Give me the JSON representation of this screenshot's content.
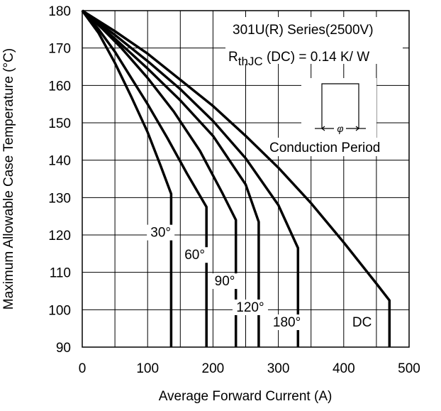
{
  "chart_data": {
    "type": "line",
    "xlabel": "Average Forward Current (A)",
    "ylabel": "Maximum Allowable Case Temperature (°C)",
    "xlim": [
      0,
      500
    ],
    "ylim": [
      90,
      180
    ],
    "x_ticks": [
      "0",
      "100",
      "200",
      "300",
      "400",
      "500"
    ],
    "y_ticks": [
      "90",
      "100",
      "110",
      "120",
      "130",
      "140",
      "150",
      "160",
      "170",
      "180"
    ],
    "grid": true,
    "annotations": {
      "series_title": "301U(R) Series(2500V)",
      "rth_prefix": "R",
      "rth_sub": "thJC",
      "rth_rest": " (DC) = 0.14 K/ W",
      "conduction_label": "Conduction Period",
      "phi": "φ"
    },
    "series": [
      {
        "name": "30°",
        "points": [
          [
            0,
            180
          ],
          [
            25,
            174
          ],
          [
            50,
            166
          ],
          [
            75,
            157
          ],
          [
            100,
            147.5
          ],
          [
            120,
            138.5
          ],
          [
            136,
            131
          ],
          [
            136,
            90
          ]
        ]
      },
      {
        "name": "60°",
        "points": [
          [
            0,
            180
          ],
          [
            25,
            175
          ],
          [
            50,
            169
          ],
          [
            75,
            162
          ],
          [
            100,
            155
          ],
          [
            130,
            146
          ],
          [
            160,
            136.5
          ],
          [
            190,
            127.5
          ],
          [
            190,
            90
          ]
        ]
      },
      {
        "name": "90°",
        "points": [
          [
            0,
            180
          ],
          [
            30,
            175.3
          ],
          [
            60,
            170
          ],
          [
            100,
            162
          ],
          [
            140,
            153
          ],
          [
            180,
            142.5
          ],
          [
            215,
            131
          ],
          [
            235,
            124
          ],
          [
            235,
            90
          ]
        ]
      },
      {
        "name": "120°",
        "points": [
          [
            0,
            180
          ],
          [
            50,
            172.5
          ],
          [
            100,
            164.5
          ],
          [
            150,
            156
          ],
          [
            200,
            146.5
          ],
          [
            250,
            133.5
          ],
          [
            270,
            123.5
          ],
          [
            270,
            90
          ]
        ]
      },
      {
        "name": "180°",
        "points": [
          [
            0,
            180
          ],
          [
            50,
            173.5
          ],
          [
            100,
            166.5
          ],
          [
            150,
            159
          ],
          [
            200,
            150.5
          ],
          [
            250,
            140.5
          ],
          [
            300,
            128
          ],
          [
            330,
            116.5
          ],
          [
            330,
            90
          ]
        ]
      },
      {
        "name": "DC",
        "points": [
          [
            0,
            180
          ],
          [
            50,
            174.5
          ],
          [
            100,
            168.5
          ],
          [
            150,
            161.5
          ],
          [
            200,
            154.5
          ],
          [
            250,
            146.5
          ],
          [
            300,
            138
          ],
          [
            350,
            128.5
          ],
          [
            400,
            118
          ],
          [
            450,
            107
          ],
          [
            470,
            102.5
          ],
          [
            470,
            90
          ]
        ]
      }
    ]
  }
}
